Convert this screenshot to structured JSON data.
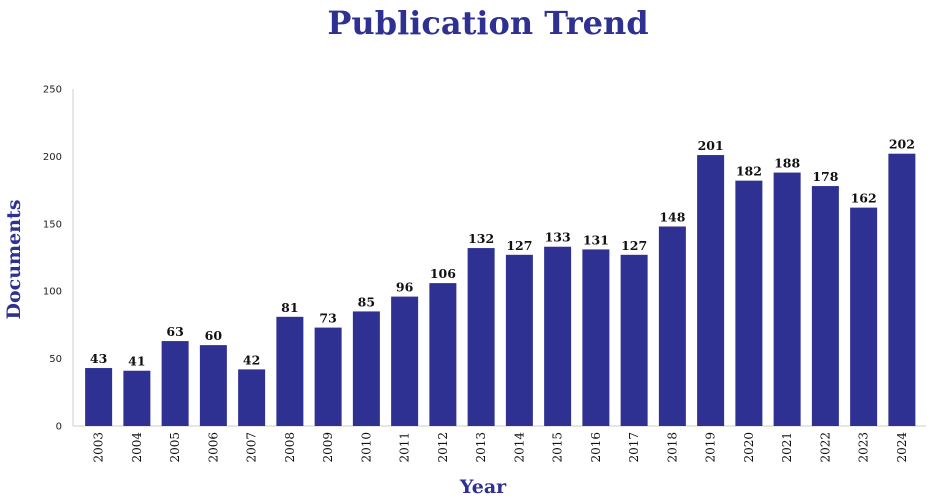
{
  "chart_data": {
    "type": "bar",
    "title": "Publication Trend",
    "xlabel": "Year",
    "ylabel": "Documents",
    "categories": [
      "2003",
      "2004",
      "2005",
      "2006",
      "2007",
      "2008",
      "2009",
      "2010",
      "2011",
      "2012",
      "2013",
      "2014",
      "2015",
      "2016",
      "2017",
      "2018",
      "2019",
      "2020",
      "2021",
      "2022",
      "2023",
      "2024"
    ],
    "values": [
      43,
      41,
      63,
      60,
      42,
      81,
      73,
      85,
      96,
      106,
      132,
      127,
      133,
      131,
      127,
      148,
      201,
      182,
      188,
      178,
      162,
      202
    ],
    "ylim": [
      0,
      250
    ],
    "yticks": [
      0,
      50,
      100,
      150,
      200,
      250
    ],
    "grid": false,
    "legend": "none",
    "colors": {
      "bar": "#2e3192",
      "title": "#2e3192",
      "axis": "#cccccc"
    }
  }
}
